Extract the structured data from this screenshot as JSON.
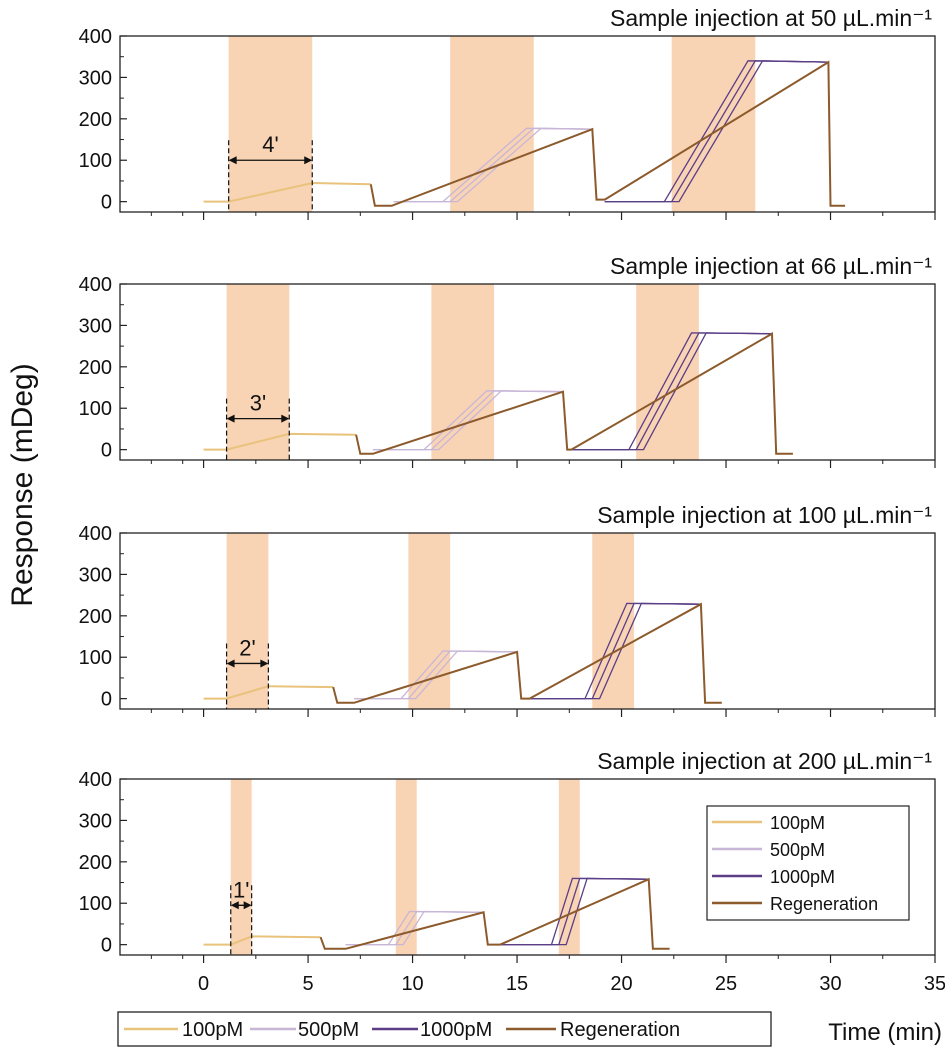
{
  "figure": {
    "ylabel": "Response (mDeg)",
    "xlabel": "Time (min)",
    "x_ticks": [
      "0",
      "5",
      "10",
      "15",
      "20",
      "25",
      "30",
      "35"
    ],
    "y_ticks": [
      "0",
      "100",
      "200",
      "300",
      "400"
    ],
    "xlim": [
      -4,
      35
    ],
    "ylim": [
      -25,
      400
    ],
    "colors": {
      "100pM": "#e9c27b",
      "500pM": "#c8b6d6",
      "1000pM": "#5b3e86",
      "Regeneration": "#8c5a2b",
      "injection": "#f8d3b4"
    },
    "legend_inset": [
      "100pM",
      "500pM",
      "1000pM",
      "Regeneration"
    ],
    "legend_bottom": [
      "100pM",
      "500pM",
      "1000pM",
      "Regeneration"
    ]
  },
  "chart_data": [
    {
      "type": "line",
      "title": "Sample injection at 50 µL.min⁻¹",
      "flow_rate_uL_per_min": 50,
      "injection_windows": [
        [
          1.2,
          5.2
        ],
        [
          11.8,
          15.8
        ],
        [
          22.4,
          26.4
        ]
      ],
      "bracket": {
        "label": "4'",
        "x": [
          1.2,
          5.2
        ],
        "y": 100
      },
      "series": [
        {
          "name": "100pM",
          "x": [
            0,
            1.2,
            5.2,
            8.0
          ],
          "y": [
            0,
            0,
            45,
            42
          ]
        },
        {
          "name": "500pM",
          "x": [
            9.1,
            11.8,
            15.8,
            18.6
          ],
          "y": [
            0,
            0,
            177,
            175
          ]
        },
        {
          "name": "1000pM",
          "x": [
            19.2,
            22.4,
            26.4,
            29.9
          ],
          "y": [
            0,
            0,
            340,
            337
          ]
        },
        {
          "name": "Regeneration",
          "x": [
            8.0,
            8.2,
            9.0,
            18.6,
            18.8,
            19.2,
            29.9,
            30.0,
            30.7
          ],
          "y": [
            42,
            -10,
            -10,
            175,
            5,
            5,
            337,
            -10,
            -10
          ]
        }
      ]
    },
    {
      "type": "line",
      "title": "Sample injection at 66 µL.min⁻¹",
      "flow_rate_uL_per_min": 66,
      "injection_windows": [
        [
          1.1,
          4.1
        ],
        [
          10.9,
          13.9
        ],
        [
          20.7,
          23.7
        ]
      ],
      "bracket": {
        "label": "3'",
        "x": [
          1.1,
          4.1
        ],
        "y": 75
      },
      "series": [
        {
          "name": "100pM",
          "x": [
            0,
            1.1,
            4.1,
            7.3
          ],
          "y": [
            0,
            0,
            38,
            36
          ]
        },
        {
          "name": "500pM",
          "x": [
            8.1,
            10.9,
            13.9,
            17.2
          ],
          "y": [
            0,
            0,
            142,
            140
          ]
        },
        {
          "name": "1000pM",
          "x": [
            17.6,
            20.7,
            23.7,
            27.2
          ],
          "y": [
            0,
            0,
            282,
            280
          ]
        },
        {
          "name": "Regeneration",
          "x": [
            7.3,
            7.5,
            8.1,
            17.2,
            17.4,
            17.6,
            27.2,
            27.4,
            28.2
          ],
          "y": [
            36,
            -10,
            -10,
            140,
            0,
            0,
            280,
            -10,
            -10
          ]
        }
      ]
    },
    {
      "type": "line",
      "title": "Sample injection at 100 µL.min⁻¹",
      "flow_rate_uL_per_min": 100,
      "injection_windows": [
        [
          1.1,
          3.1
        ],
        [
          9.8,
          11.8
        ],
        [
          18.6,
          20.6
        ]
      ],
      "bracket": {
        "label": "2'",
        "x": [
          1.1,
          3.1
        ],
        "y": 85
      },
      "series": [
        {
          "name": "100pM",
          "x": [
            0,
            1.1,
            3.1,
            6.2
          ],
          "y": [
            0,
            0,
            30,
            28
          ]
        },
        {
          "name": "500pM",
          "x": [
            7.2,
            9.8,
            11.8,
            15.0
          ],
          "y": [
            0,
            0,
            115,
            113
          ]
        },
        {
          "name": "1000pM",
          "x": [
            15.6,
            18.6,
            20.6,
            23.8
          ],
          "y": [
            0,
            0,
            230,
            228
          ]
        },
        {
          "name": "Regeneration",
          "x": [
            6.2,
            6.4,
            7.2,
            15.0,
            15.2,
            15.6,
            23.8,
            24.0,
            24.8
          ],
          "y": [
            28,
            -10,
            -10,
            113,
            0,
            0,
            228,
            -10,
            -10
          ]
        }
      ]
    },
    {
      "type": "line",
      "title": "Sample injection at 200 µL.min⁻¹",
      "flow_rate_uL_per_min": 200,
      "injection_windows": [
        [
          1.3,
          2.3
        ],
        [
          9.2,
          10.2
        ],
        [
          17.0,
          18.0
        ]
      ],
      "bracket": {
        "label": "1'",
        "x": [
          1.3,
          2.3
        ],
        "y": 95
      },
      "series": [
        {
          "name": "100pM",
          "x": [
            0,
            1.3,
            2.3,
            5.6
          ],
          "y": [
            0,
            0,
            20,
            18
          ]
        },
        {
          "name": "500pM",
          "x": [
            6.8,
            9.2,
            10.2,
            13.4
          ],
          "y": [
            0,
            0,
            80,
            78
          ]
        },
        {
          "name": "1000pM",
          "x": [
            14.2,
            17.0,
            18.0,
            21.3
          ],
          "y": [
            0,
            0,
            160,
            158
          ]
        },
        {
          "name": "Regeneration",
          "x": [
            5.6,
            5.8,
            6.8,
            13.4,
            13.6,
            14.2,
            21.3,
            21.5,
            22.3
          ],
          "y": [
            18,
            -10,
            -10,
            78,
            0,
            0,
            158,
            -10,
            -10
          ]
        }
      ]
    }
  ]
}
